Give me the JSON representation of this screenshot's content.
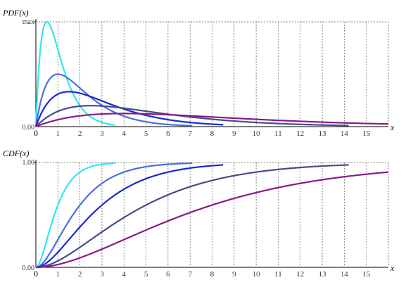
{
  "chart_data": [
    {
      "type": "line",
      "title": "PDF(x)",
      "xlabel": "x",
      "ylabel": "",
      "xlim": [
        0,
        16
      ],
      "ylim_labels": {
        "bottom": "0.00",
        "top": "max"
      },
      "x_tick_labels": [
        "0",
        "1",
        "2",
        "3",
        "4",
        "5",
        "6",
        "7",
        "8",
        "9",
        "10",
        "11",
        "12",
        "13",
        "14",
        "15"
      ],
      "grid": true,
      "series": [
        {
          "color": "#33e5f0",
          "distribution": "chi-square-like",
          "k": 2,
          "theta": 0.5,
          "x_end": 3.6
        },
        {
          "color": "#4a6fdc",
          "distribution": "chi-square-like",
          "k": 2,
          "theta": 1.0,
          "x_end": 7.1
        },
        {
          "color": "#1a2ad0",
          "distribution": "chi-square-like",
          "k": 2,
          "theta": 1.5,
          "x_end": 8.5
        },
        {
          "color": "#4a4a90",
          "distribution": "chi-square-like",
          "k": 2,
          "theta": 2.5,
          "x_end": 14.2
        },
        {
          "color": "#8a1a8a",
          "distribution": "chi-square-like",
          "k": 2,
          "theta": 4.0,
          "x_end": 16.0
        }
      ]
    },
    {
      "type": "line",
      "title": "CDF(x)",
      "xlabel": "x",
      "ylabel": "",
      "xlim": [
        0,
        16
      ],
      "ylim": [
        0,
        1
      ],
      "ylim_labels": {
        "bottom": "0.00",
        "top": "1.00"
      },
      "x_tick_labels": [
        "0",
        "1",
        "2",
        "3",
        "4",
        "5",
        "6",
        "7",
        "8",
        "9",
        "10",
        "11",
        "12",
        "13",
        "14",
        "15"
      ],
      "grid": true,
      "series": [
        {
          "color": "#33e5f0",
          "k": 2,
          "theta": 0.5,
          "x_end": 3.6
        },
        {
          "color": "#4a6fdc",
          "k": 2,
          "theta": 1.0,
          "x_end": 7.1
        },
        {
          "color": "#1a2ad0",
          "k": 2,
          "theta": 1.5,
          "x_end": 8.5
        },
        {
          "color": "#4a4a90",
          "k": 2,
          "theta": 2.5,
          "x_end": 14.2
        },
        {
          "color": "#8a1a8a",
          "k": 2,
          "theta": 4.0,
          "x_end": 16.0
        }
      ]
    }
  ]
}
